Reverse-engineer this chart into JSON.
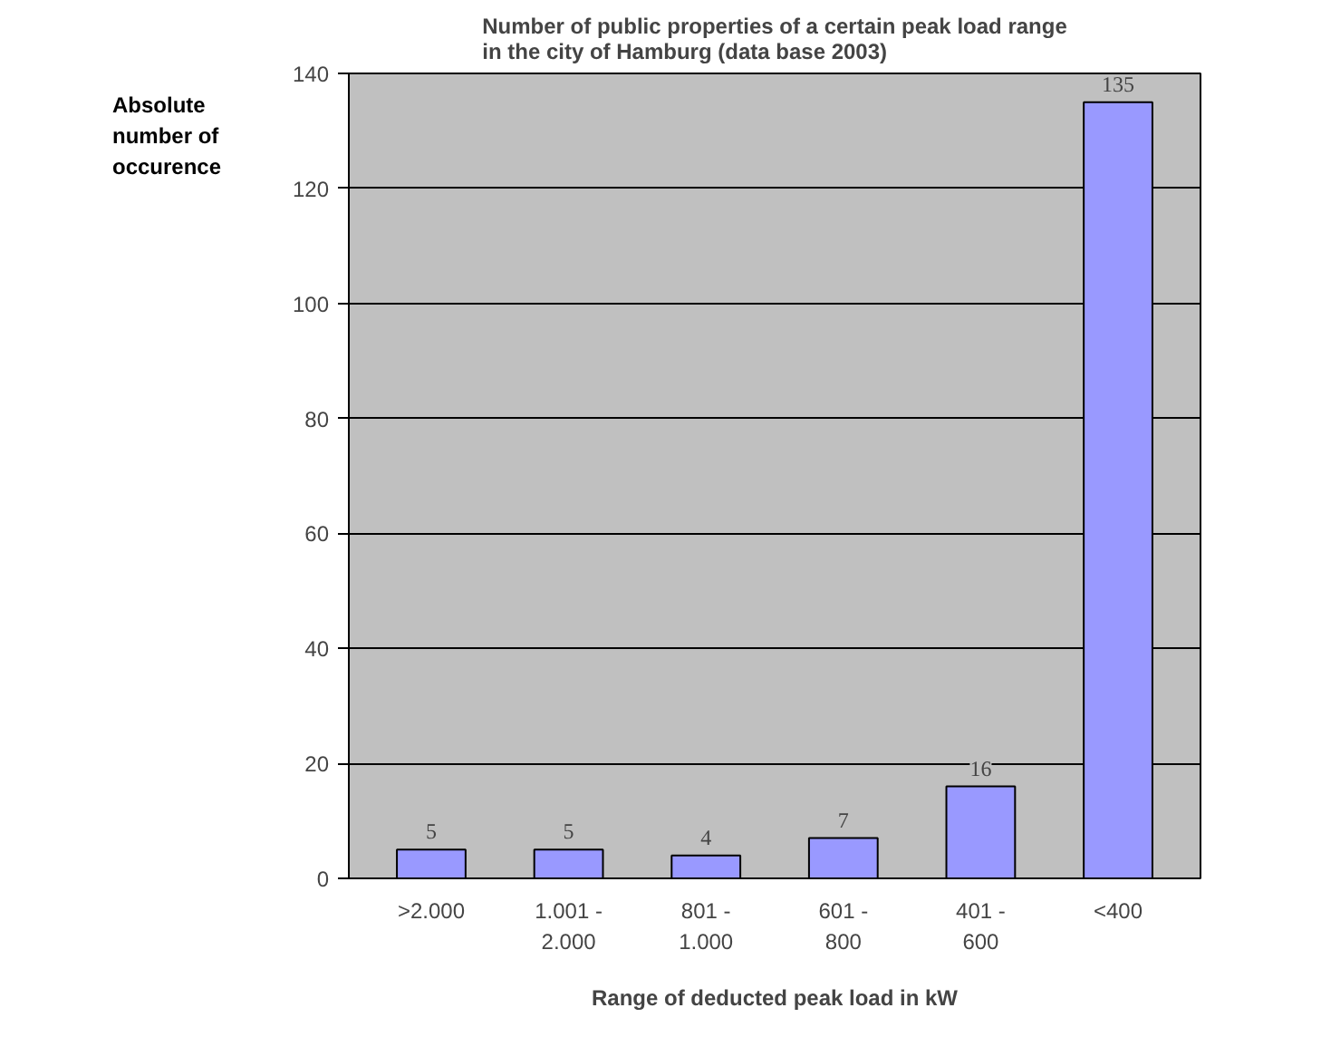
{
  "chart_data": {
    "type": "bar",
    "title": "Number of public properties of a certain peak load range\nin the city of Hamburg (data base 2003)",
    "xlabel": "Range of deducted peak load in kW",
    "ylabel": "Absolute number of occurence",
    "categories": [
      ">2.000",
      "1.001 - 2.000",
      "801 - 1.000",
      "601 - 800",
      "401 - 600",
      "<400"
    ],
    "values": [
      5,
      5,
      4,
      7,
      16,
      135
    ],
    "color": "#9999ff",
    "ylim": [
      0,
      140
    ],
    "yticks": [
      0,
      20,
      40,
      60,
      80,
      100,
      120,
      140
    ],
    "grid": "y",
    "data_labels": true
  }
}
